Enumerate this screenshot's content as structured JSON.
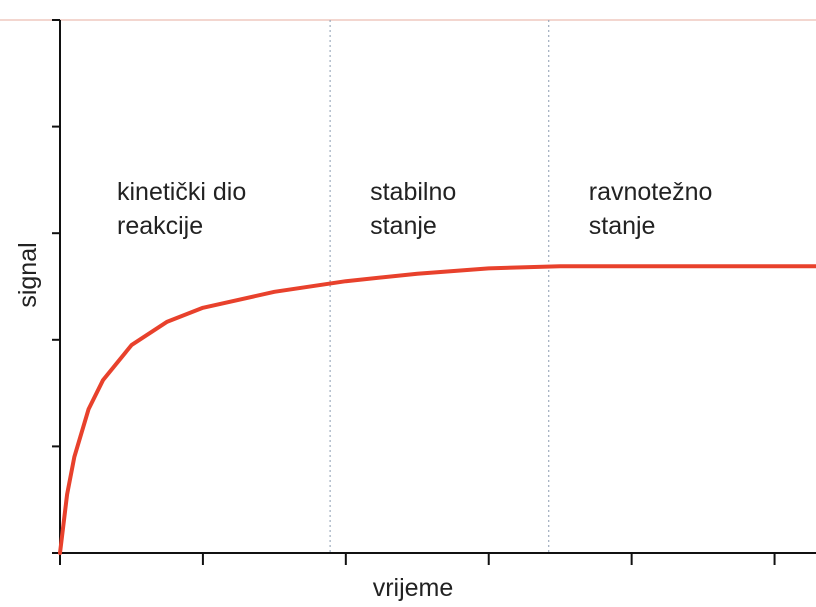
{
  "chart_data": {
    "type": "line",
    "xlabel": "vrijeme",
    "ylabel": "signal",
    "x": [
      0,
      0.05,
      0.1,
      0.2,
      0.3,
      0.5,
      0.75,
      1.0,
      1.5,
      2.0,
      2.5,
      3.0,
      3.5,
      4.0,
      4.5,
      5.0,
      5.29
    ],
    "values": [
      0,
      0.55,
      0.9,
      1.35,
      1.62,
      1.95,
      2.17,
      2.3,
      2.45,
      2.55,
      2.62,
      2.67,
      2.69,
      2.69,
      2.69,
      2.69,
      2.69
    ],
    "color": "#e8412c",
    "xlim": [
      0,
      5.29
    ],
    "ylim": [
      0,
      5
    ],
    "xticks": [
      0,
      1,
      2,
      3,
      4,
      5
    ],
    "yticks": [
      0,
      1,
      2,
      3,
      4,
      5
    ],
    "dividers": [
      1.89,
      3.42
    ],
    "annotations": [
      [
        "kinetički dio",
        "reakcije"
      ],
      [
        "stabilno",
        "stanje"
      ],
      [
        "ravnotežno",
        "stanje"
      ]
    ]
  }
}
